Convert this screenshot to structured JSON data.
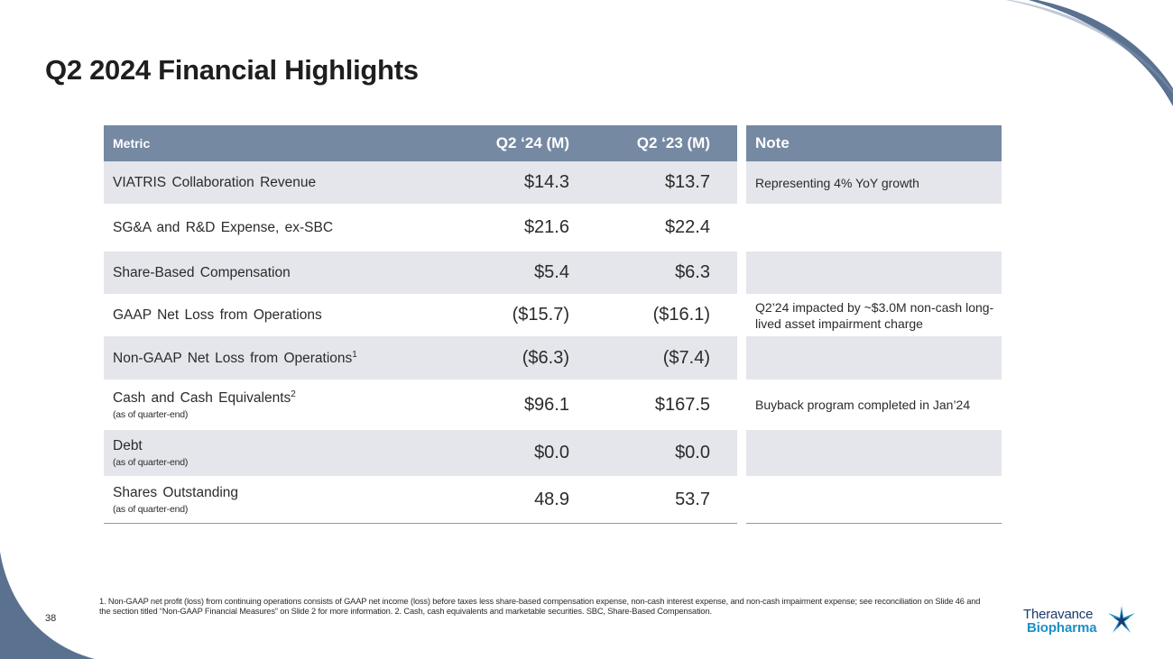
{
  "page": {
    "title": "Q2 2024 Financial Highlights",
    "page_number": "38"
  },
  "table": {
    "headers": {
      "metric": "Metric",
      "q2_24": "Q2 ‘24 (M)",
      "q2_23": "Q2 ‘23 (M)",
      "note": "Note"
    },
    "rows": [
      {
        "metric": "VIATRIS Collaboration Revenue",
        "sup": "",
        "sub": "",
        "q2_24": "$14.3",
        "q2_23": "$13.7",
        "note": "Representing 4% YoY growth"
      },
      {
        "metric": "SG&A and R&D Expense, ex-SBC",
        "sup": "",
        "sub": "",
        "q2_24": "$21.6",
        "q2_23": "$22.4",
        "note": ""
      },
      {
        "metric": "Share-Based Compensation",
        "sup": "",
        "sub": "",
        "q2_24": "$5.4",
        "q2_23": "$6.3",
        "note": ""
      },
      {
        "metric": "GAAP Net Loss from Operations",
        "sup": "",
        "sub": "",
        "q2_24": "($15.7)",
        "q2_23": "($16.1)",
        "note": "Q2’24 impacted by ~$3.0M non-cash long-lived asset impairment charge"
      },
      {
        "metric": "Non-GAAP Net Loss from Operations",
        "sup": "1",
        "sub": "",
        "q2_24": "($6.3)",
        "q2_23": "($7.4)",
        "note": ""
      },
      {
        "metric": "Cash and Cash Equivalents",
        "sup": "2",
        "sub": "(as of quarter-end)",
        "q2_24": "$96.1",
        "q2_23": "$167.5",
        "note": "Buyback program completed in Jan’24"
      },
      {
        "metric": "Debt",
        "sup": "",
        "sub": "(as of quarter-end)",
        "q2_24": "$0.0",
        "q2_23": "$0.0",
        "note": ""
      },
      {
        "metric": "Shares Outstanding",
        "sup": "",
        "sub": "(as of quarter-end)",
        "q2_24": "48.9",
        "q2_23": "53.7",
        "note": ""
      }
    ]
  },
  "footnote": "1. Non-GAAP net profit (loss) from continuing operations consists of GAAP net income (loss) before taxes less share-based compensation expense, non-cash interest expense, and non-cash impairment expense; see reconciliation on Slide 46 and the section titled “Non-GAAP Financial Measures” on Slide 2 for more information. 2. Cash, cash equivalents and marketable securities. SBC, Share-Based Compensation.",
  "logo": {
    "line1": "Theravance",
    "line2": "Biopharma"
  },
  "colors": {
    "header_bg": "#7589a3",
    "row_shade": "#e4e6eb",
    "decor_blue": "#5a7190",
    "logo_navy": "#1b3a6b",
    "logo_cyan": "#1b8fc9"
  }
}
